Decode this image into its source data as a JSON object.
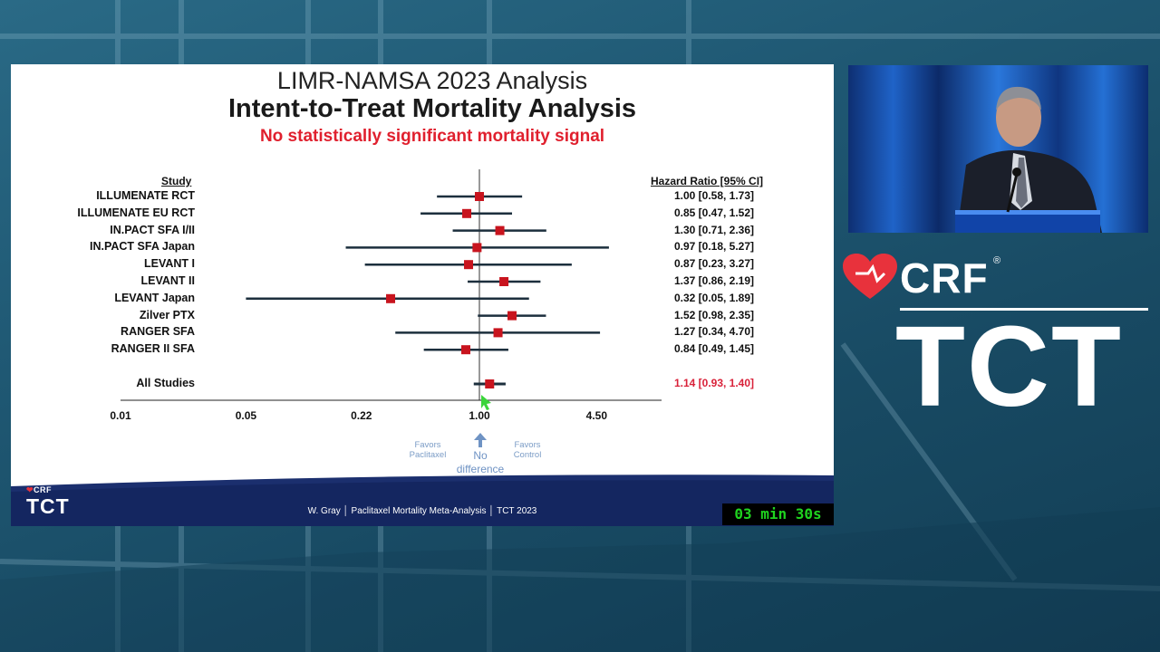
{
  "slide": {
    "title_line1": "LIMR-NAMSA 2023 Analysis",
    "title_line2": "Intent-to-Treat Mortality Analysis",
    "subtitle": "No statistically significant mortality signal",
    "col_study": "Study",
    "col_hr": "Hazard Ratio [95% CI]",
    "studies": [
      {
        "name": "ILLUMENATE RCT",
        "hr_text": "1.00 [0.58, 1.73]"
      },
      {
        "name": "ILLUMENATE EU RCT",
        "hr_text": "0.85 [0.47, 1.52]"
      },
      {
        "name": "IN.PACT SFA I/II",
        "hr_text": "1.30 [0.71, 2.36]"
      },
      {
        "name": "IN.PACT SFA Japan",
        "hr_text": "0.97 [0.18, 5.27]"
      },
      {
        "name": "LEVANT I",
        "hr_text": "0.87 [0.23, 3.27]"
      },
      {
        "name": "LEVANT II",
        "hr_text": "1.37 [0.86, 2.19]"
      },
      {
        "name": "LEVANT Japan",
        "hr_text": "0.32 [0.05, 1.89]"
      },
      {
        "name": "Zilver PTX",
        "hr_text": "1.52 [0.98, 2.35]"
      },
      {
        "name": "RANGER SFA",
        "hr_text": "1.27 [0.34, 4.70]"
      },
      {
        "name": "RANGER II SFA",
        "hr_text": "0.84 [0.49, 1.45]"
      }
    ],
    "all_studies": {
      "name": "All Studies",
      "hr_text": "1.14 [0.93, 1.40]"
    },
    "ticks": [
      "0.01",
      "0.05",
      "0.22",
      "1.00",
      "4.50"
    ],
    "favors_left": [
      "Favors",
      "Paclitaxel"
    ],
    "favors_right": [
      "Favors",
      "Control"
    ],
    "no_difference": [
      "No",
      "difference"
    ],
    "footer": "W. Gray │ Paclitaxel Mortality Meta-Analysis │ TCT 2023",
    "footer_logo_crf": "CRF",
    "footer_logo_tct": "TCT",
    "timer": "03 min 30s"
  },
  "chart_data": {
    "type": "forest",
    "x_scale": "log",
    "xlim": [
      0.01,
      10
    ],
    "x_ticks": [
      0.01,
      0.05,
      0.22,
      1.0,
      4.5
    ],
    "reference_line": 1.0,
    "ylabel": "Study",
    "value_label": "Hazard Ratio [95% CI]",
    "rows": [
      {
        "name": "ILLUMENATE RCT",
        "hr": 1.0,
        "lo": 0.58,
        "hi": 1.73
      },
      {
        "name": "ILLUMENATE EU RCT",
        "hr": 0.85,
        "lo": 0.47,
        "hi": 1.52
      },
      {
        "name": "IN.PACT SFA I/II",
        "hr": 1.3,
        "lo": 0.71,
        "hi": 2.36
      },
      {
        "name": "IN.PACT SFA Japan",
        "hr": 0.97,
        "lo": 0.18,
        "hi": 5.27
      },
      {
        "name": "LEVANT I",
        "hr": 0.87,
        "lo": 0.23,
        "hi": 3.27
      },
      {
        "name": "LEVANT II",
        "hr": 1.37,
        "lo": 0.86,
        "hi": 2.19
      },
      {
        "name": "LEVANT Japan",
        "hr": 0.32,
        "lo": 0.05,
        "hi": 1.89
      },
      {
        "name": "Zilver PTX",
        "hr": 1.52,
        "lo": 0.98,
        "hi": 2.35
      },
      {
        "name": "RANGER SFA",
        "hr": 1.27,
        "lo": 0.34,
        "hi": 4.7
      },
      {
        "name": "RANGER II SFA",
        "hr": 0.84,
        "lo": 0.49,
        "hi": 1.45
      },
      {
        "name": "All Studies",
        "hr": 1.14,
        "lo": 0.93,
        "hi": 1.4
      }
    ],
    "colors": {
      "marker": "#c8141e",
      "line": "#1c2f3d",
      "summary_text": "#d9223a"
    }
  },
  "brand": {
    "crf": "CRF",
    "reg": "®",
    "tct": "TCT",
    "heart_color": "#e8323c"
  }
}
